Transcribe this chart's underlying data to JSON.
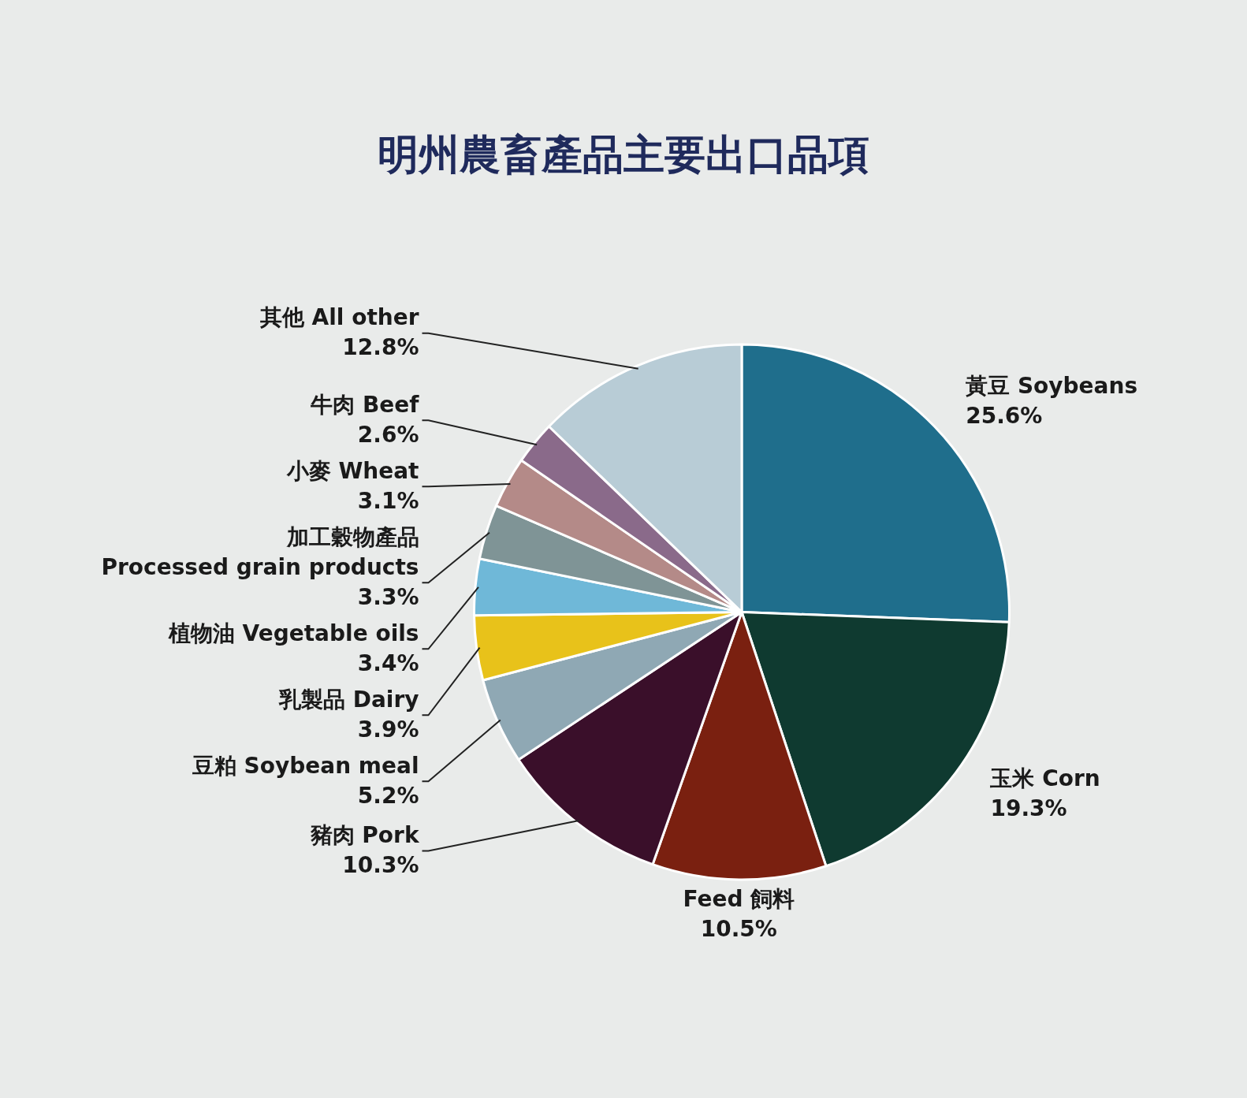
{
  "chart_data": {
    "type": "pie",
    "title": "明州農畜產品主要出口品項",
    "categories": [
      "黃豆 Soybeans",
      "玉米 Corn",
      "Feed 飼料",
      "豬肉 Pork",
      "豆粕 Soybean meal",
      "乳製品 Dairy",
      "植物油 Vegetable oils",
      "加工穀物產品 Processed grain products",
      "小麥 Wheat",
      "牛肉 Beef",
      "其他 All other"
    ],
    "values": [
      25.6,
      19.3,
      10.5,
      10.3,
      5.2,
      3.9,
      3.4,
      3.3,
      3.1,
      2.6,
      12.8
    ],
    "value_labels": [
      "25.6%",
      "19.3%",
      "10.5%",
      "10.3%",
      "5.2%",
      "3.9%",
      "3.4%",
      "3.3%",
      "3.1%",
      "2.6%",
      "12.8%"
    ],
    "colors": [
      "#1f6e8c",
      "#0f3a30",
      "#7a2010",
      "#3a0f2a",
      "#8fa8b4",
      "#e8c21a",
      "#6fb8d8",
      "#7f9496",
      "#b48a88",
      "#8a6a8a",
      "#b8ccd6"
    ],
    "legend": false
  }
}
